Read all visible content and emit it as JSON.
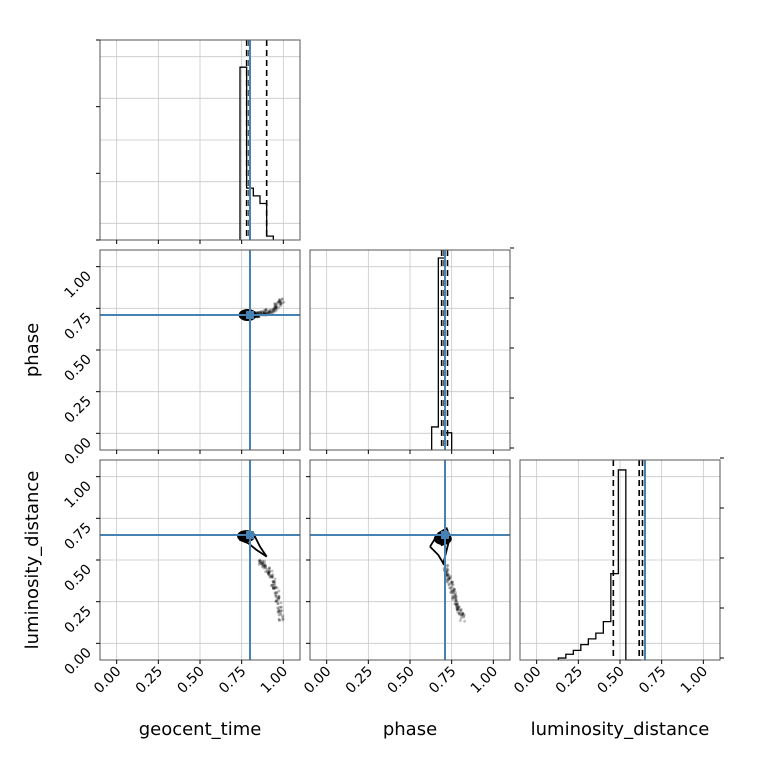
{
  "colors": {
    "truth": "#4682b4",
    "contour": "#000000",
    "grid": "#c8c8c8",
    "axes": "#555555"
  },
  "chart_data": {
    "type": "corner",
    "parameters": [
      "geocent_time",
      "phase",
      "luminosity_distance"
    ],
    "axis_range": [
      -0.1,
      1.1
    ],
    "tick_values": [
      0.0,
      0.25,
      0.5,
      0.75,
      1.0
    ],
    "tick_labels": [
      "0.00",
      "0.25",
      "0.50",
      "0.75",
      "1.00"
    ],
    "grid": true,
    "truths": {
      "geocent_time": 0.8,
      "phase": 0.71,
      "luminosity_distance": 0.65
    },
    "diagonal": [
      {
        "parameter": "geocent_time",
        "quantiles": [
          0.78,
          0.795,
          0.9
        ],
        "bins_start": 0.74,
        "bin_width": 0.04,
        "counts": [
          0.9,
          0.27,
          0.23,
          0.19,
          0.02
        ]
      },
      {
        "parameter": "phase",
        "quantiles": [
          0.69,
          0.705,
          0.725
        ],
        "bins_start": 0.63,
        "bin_width": 0.04,
        "counts": [
          0.12,
          1.0,
          0.09
        ]
      },
      {
        "parameter": "luminosity_distance",
        "quantiles": [
          0.46,
          0.615,
          0.635
        ],
        "bins_start": 0.13,
        "bin_width": 0.045,
        "counts": [
          0.01,
          0.03,
          0.05,
          0.08,
          0.11,
          0.14,
          0.2,
          0.45,
          0.99,
          0.0,
          0.0
        ]
      }
    ],
    "panels_2d": [
      {
        "x": "geocent_time",
        "y": "phase",
        "contours": [
          [
            [
              0.74,
              0.71
            ],
            [
              0.77,
              0.69
            ],
            [
              0.82,
              0.7
            ],
            [
              0.85,
              0.7
            ],
            [
              0.82,
              0.73
            ],
            [
              0.77,
              0.73
            ],
            [
              0.74,
              0.71
            ]
          ],
          [
            [
              0.76,
              0.71
            ],
            [
              0.78,
              0.7
            ],
            [
              0.81,
              0.7
            ],
            [
              0.82,
              0.71
            ],
            [
              0.8,
              0.72
            ],
            [
              0.77,
              0.72
            ],
            [
              0.76,
              0.71
            ]
          ]
        ],
        "tail": [
          [
            0.82,
            0.71
          ],
          [
            0.88,
            0.72
          ],
          [
            0.94,
            0.74
          ],
          [
            0.99,
            0.8
          ]
        ]
      },
      {
        "x": "geocent_time",
        "y": "luminosity_distance",
        "contours": [
          [
            [
              0.73,
              0.65
            ],
            [
              0.76,
              0.67
            ],
            [
              0.82,
              0.66
            ],
            [
              0.86,
              0.58
            ],
            [
              0.9,
              0.52
            ],
            [
              0.84,
              0.56
            ],
            [
              0.79,
              0.6
            ],
            [
              0.74,
              0.62
            ],
            [
              0.73,
              0.65
            ]
          ],
          [
            [
              0.75,
              0.65
            ],
            [
              0.78,
              0.67
            ],
            [
              0.82,
              0.64
            ],
            [
              0.8,
              0.62
            ],
            [
              0.76,
              0.63
            ],
            [
              0.75,
              0.65
            ]
          ]
        ],
        "tail": [
          [
            0.86,
            0.5
          ],
          [
            0.92,
            0.42
          ],
          [
            0.96,
            0.3
          ],
          [
            0.99,
            0.14
          ]
        ]
      },
      {
        "x": "phase",
        "y": "luminosity_distance",
        "contours": [
          [
            [
              0.62,
              0.58
            ],
            [
              0.67,
              0.66
            ],
            [
              0.72,
              0.69
            ],
            [
              0.74,
              0.64
            ],
            [
              0.72,
              0.56
            ],
            [
              0.7,
              0.48
            ],
            [
              0.67,
              0.53
            ],
            [
              0.62,
              0.58
            ]
          ],
          [
            [
              0.67,
              0.62
            ],
            [
              0.7,
              0.67
            ],
            [
              0.73,
              0.66
            ],
            [
              0.72,
              0.6
            ],
            [
              0.69,
              0.59
            ],
            [
              0.67,
              0.62
            ]
          ]
        ],
        "tail": [
          [
            0.71,
            0.48
          ],
          [
            0.74,
            0.36
          ],
          [
            0.78,
            0.24
          ],
          [
            0.82,
            0.14
          ]
        ]
      }
    ]
  }
}
